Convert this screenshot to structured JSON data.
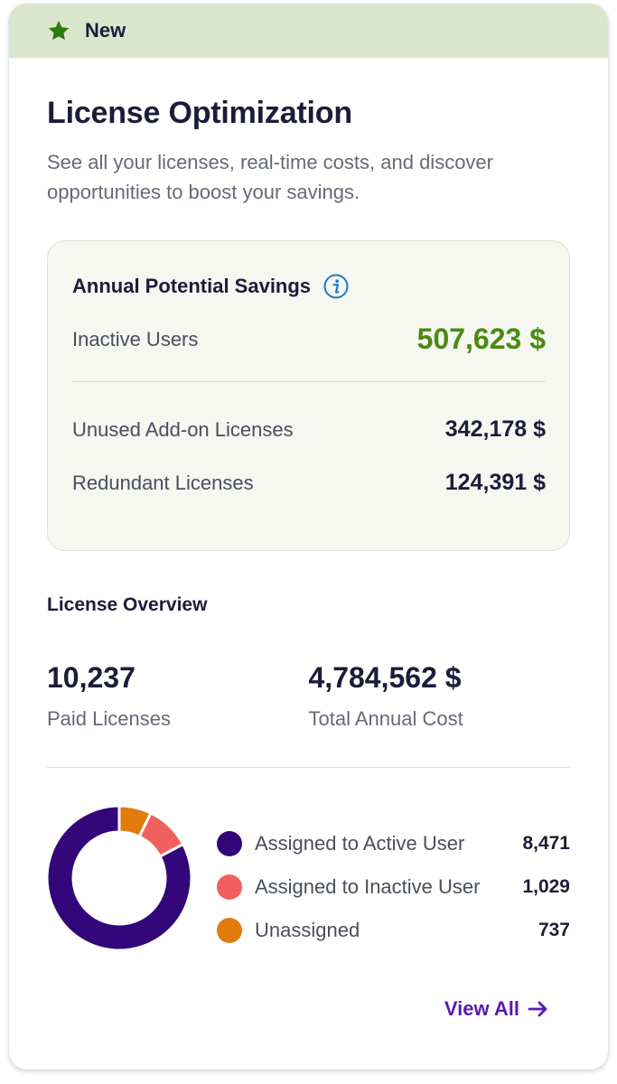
{
  "banner": {
    "label": "New",
    "icon": "star-icon",
    "color": "#2e7a0f"
  },
  "header": {
    "title": "License Optimization",
    "subtitle": "See all your licenses, real-time costs, and discover opportunities to boost your savings."
  },
  "savings": {
    "title": "Annual Potential Savings",
    "info_icon": "info-icon",
    "rows": [
      {
        "label": "Inactive Users",
        "value": "507,623 $"
      },
      {
        "label": "Unused Add-on Licenses",
        "value": "342,178 $"
      },
      {
        "label": "Redundant Licenses",
        "value": "124,391 $"
      }
    ]
  },
  "overview": {
    "title": "License Overview",
    "paid_licenses": {
      "value": "10,237",
      "label": "Paid Licenses"
    },
    "total_cost": {
      "value": "4,784,562 $",
      "label": "Total Annual Cost"
    }
  },
  "chart_data": {
    "type": "pie",
    "categories": [
      "Assigned to Active User",
      "Assigned to Inactive User",
      "Unassigned"
    ],
    "values": [
      8471,
      1029,
      737
    ],
    "value_labels": [
      "8,471",
      "1,029",
      "737"
    ],
    "colors": [
      "#33077a",
      "#f25f5f",
      "#e07b0c"
    ]
  },
  "footer": {
    "view_all": "View All"
  }
}
